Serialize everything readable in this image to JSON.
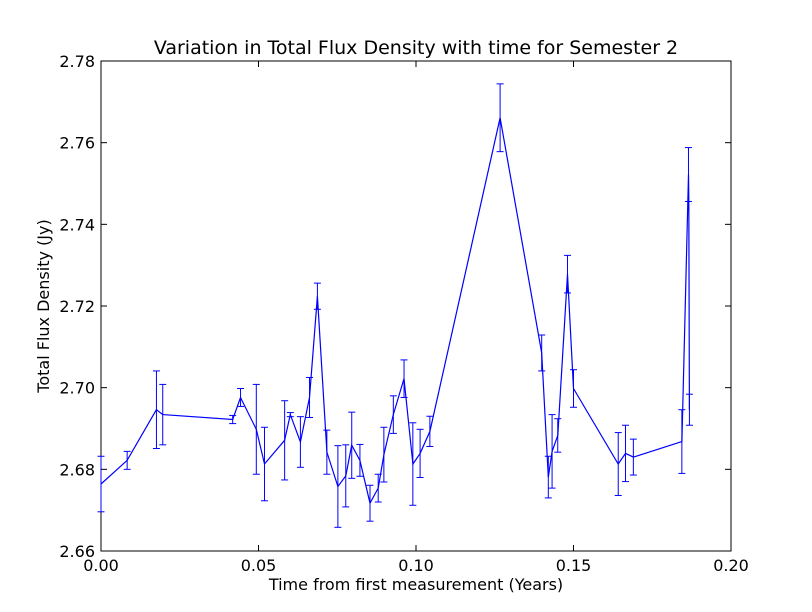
{
  "chart_data": {
    "type": "line",
    "title": "Variation in Total Flux Density with time for Semester 2",
    "xlabel": "Time from first measurement (Years)",
    "ylabel": "Total Flux Density (Jy)",
    "xlim": [
      0.0,
      0.2
    ],
    "ylim": [
      2.66,
      2.78
    ],
    "xticks": [
      "0.00",
      "0.05",
      "0.10",
      "0.15",
      "0.20"
    ],
    "yticks": [
      "2.66",
      "2.68",
      "2.70",
      "2.72",
      "2.74",
      "2.76",
      "2.78"
    ],
    "xtick_values": [
      0.0,
      0.05,
      0.1,
      0.15,
      0.2
    ],
    "ytick_values": [
      2.66,
      2.68,
      2.7,
      2.72,
      2.74,
      2.76,
      2.78
    ],
    "grid": false,
    "series": [
      {
        "color": "#0000ff",
        "points": [
          {
            "x": 0.0,
            "y": 2.6764,
            "err": 0.0068
          },
          {
            "x": 0.0083,
            "y": 2.6822,
            "err": 0.0022
          },
          {
            "x": 0.0176,
            "y": 2.6946,
            "err": 0.0095
          },
          {
            "x": 0.0196,
            "y": 2.6934,
            "err": 0.0074
          },
          {
            "x": 0.0418,
            "y": 2.6922,
            "err": 0.001
          },
          {
            "x": 0.0443,
            "y": 2.6976,
            "err": 0.0022
          },
          {
            "x": 0.0493,
            "y": 2.6898,
            "err": 0.011
          },
          {
            "x": 0.0519,
            "y": 2.6813,
            "err": 0.009
          },
          {
            "x": 0.0583,
            "y": 2.6871,
            "err": 0.0097
          },
          {
            "x": 0.0601,
            "y": 2.6934,
            "err": 0.0005
          },
          {
            "x": 0.0633,
            "y": 2.6867,
            "err": 0.0062
          },
          {
            "x": 0.0662,
            "y": 2.6976,
            "err": 0.0049
          },
          {
            "x": 0.0687,
            "y": 2.7224,
            "err": 0.0032
          },
          {
            "x": 0.0717,
            "y": 2.6842,
            "err": 0.0054
          },
          {
            "x": 0.0752,
            "y": 2.6758,
            "err": 0.01
          },
          {
            "x": 0.0777,
            "y": 2.6784,
            "err": 0.0076
          },
          {
            "x": 0.0796,
            "y": 2.6859,
            "err": 0.0081
          },
          {
            "x": 0.0822,
            "y": 2.6822,
            "err": 0.0039
          },
          {
            "x": 0.0854,
            "y": 2.6717,
            "err": 0.0044
          },
          {
            "x": 0.088,
            "y": 2.6754,
            "err": 0.0034
          },
          {
            "x": 0.0898,
            "y": 2.6836,
            "err": 0.0067
          },
          {
            "x": 0.0928,
            "y": 2.6934,
            "err": 0.0046
          },
          {
            "x": 0.0962,
            "y": 2.7022,
            "err": 0.0046
          },
          {
            "x": 0.099,
            "y": 2.6813,
            "err": 0.0101
          },
          {
            "x": 0.1013,
            "y": 2.6839,
            "err": 0.0059
          },
          {
            "x": 0.1044,
            "y": 2.6893,
            "err": 0.0037
          },
          {
            "x": 0.1267,
            "y": 2.7661,
            "err": 0.0083
          },
          {
            "x": 0.1399,
            "y": 2.7085,
            "err": 0.0044
          },
          {
            "x": 0.142,
            "y": 2.6781,
            "err": 0.0051
          },
          {
            "x": 0.1432,
            "y": 2.6844,
            "err": 0.009
          },
          {
            "x": 0.145,
            "y": 2.6883,
            "err": 0.0041
          },
          {
            "x": 0.1481,
            "y": 2.7278,
            "err": 0.0046
          },
          {
            "x": 0.15,
            "y": 2.6998,
            "err": 0.0046
          },
          {
            "x": 0.1642,
            "y": 2.6813,
            "err": 0.0077
          },
          {
            "x": 0.1665,
            "y": 2.6839,
            "err": 0.0069
          },
          {
            "x": 0.169,
            "y": 2.683,
            "err": 0.0044
          },
          {
            "x": 0.1844,
            "y": 2.6868,
            "err": 0.0078
          },
          {
            "x": 0.1865,
            "y": 2.7522,
            "err": 0.0066
          },
          {
            "x": 0.1866,
            "y": 2.7466,
            "err": 0.0
          },
          {
            "x": 0.1868,
            "y": 2.6946,
            "err": 0.0038
          }
        ]
      }
    ]
  }
}
